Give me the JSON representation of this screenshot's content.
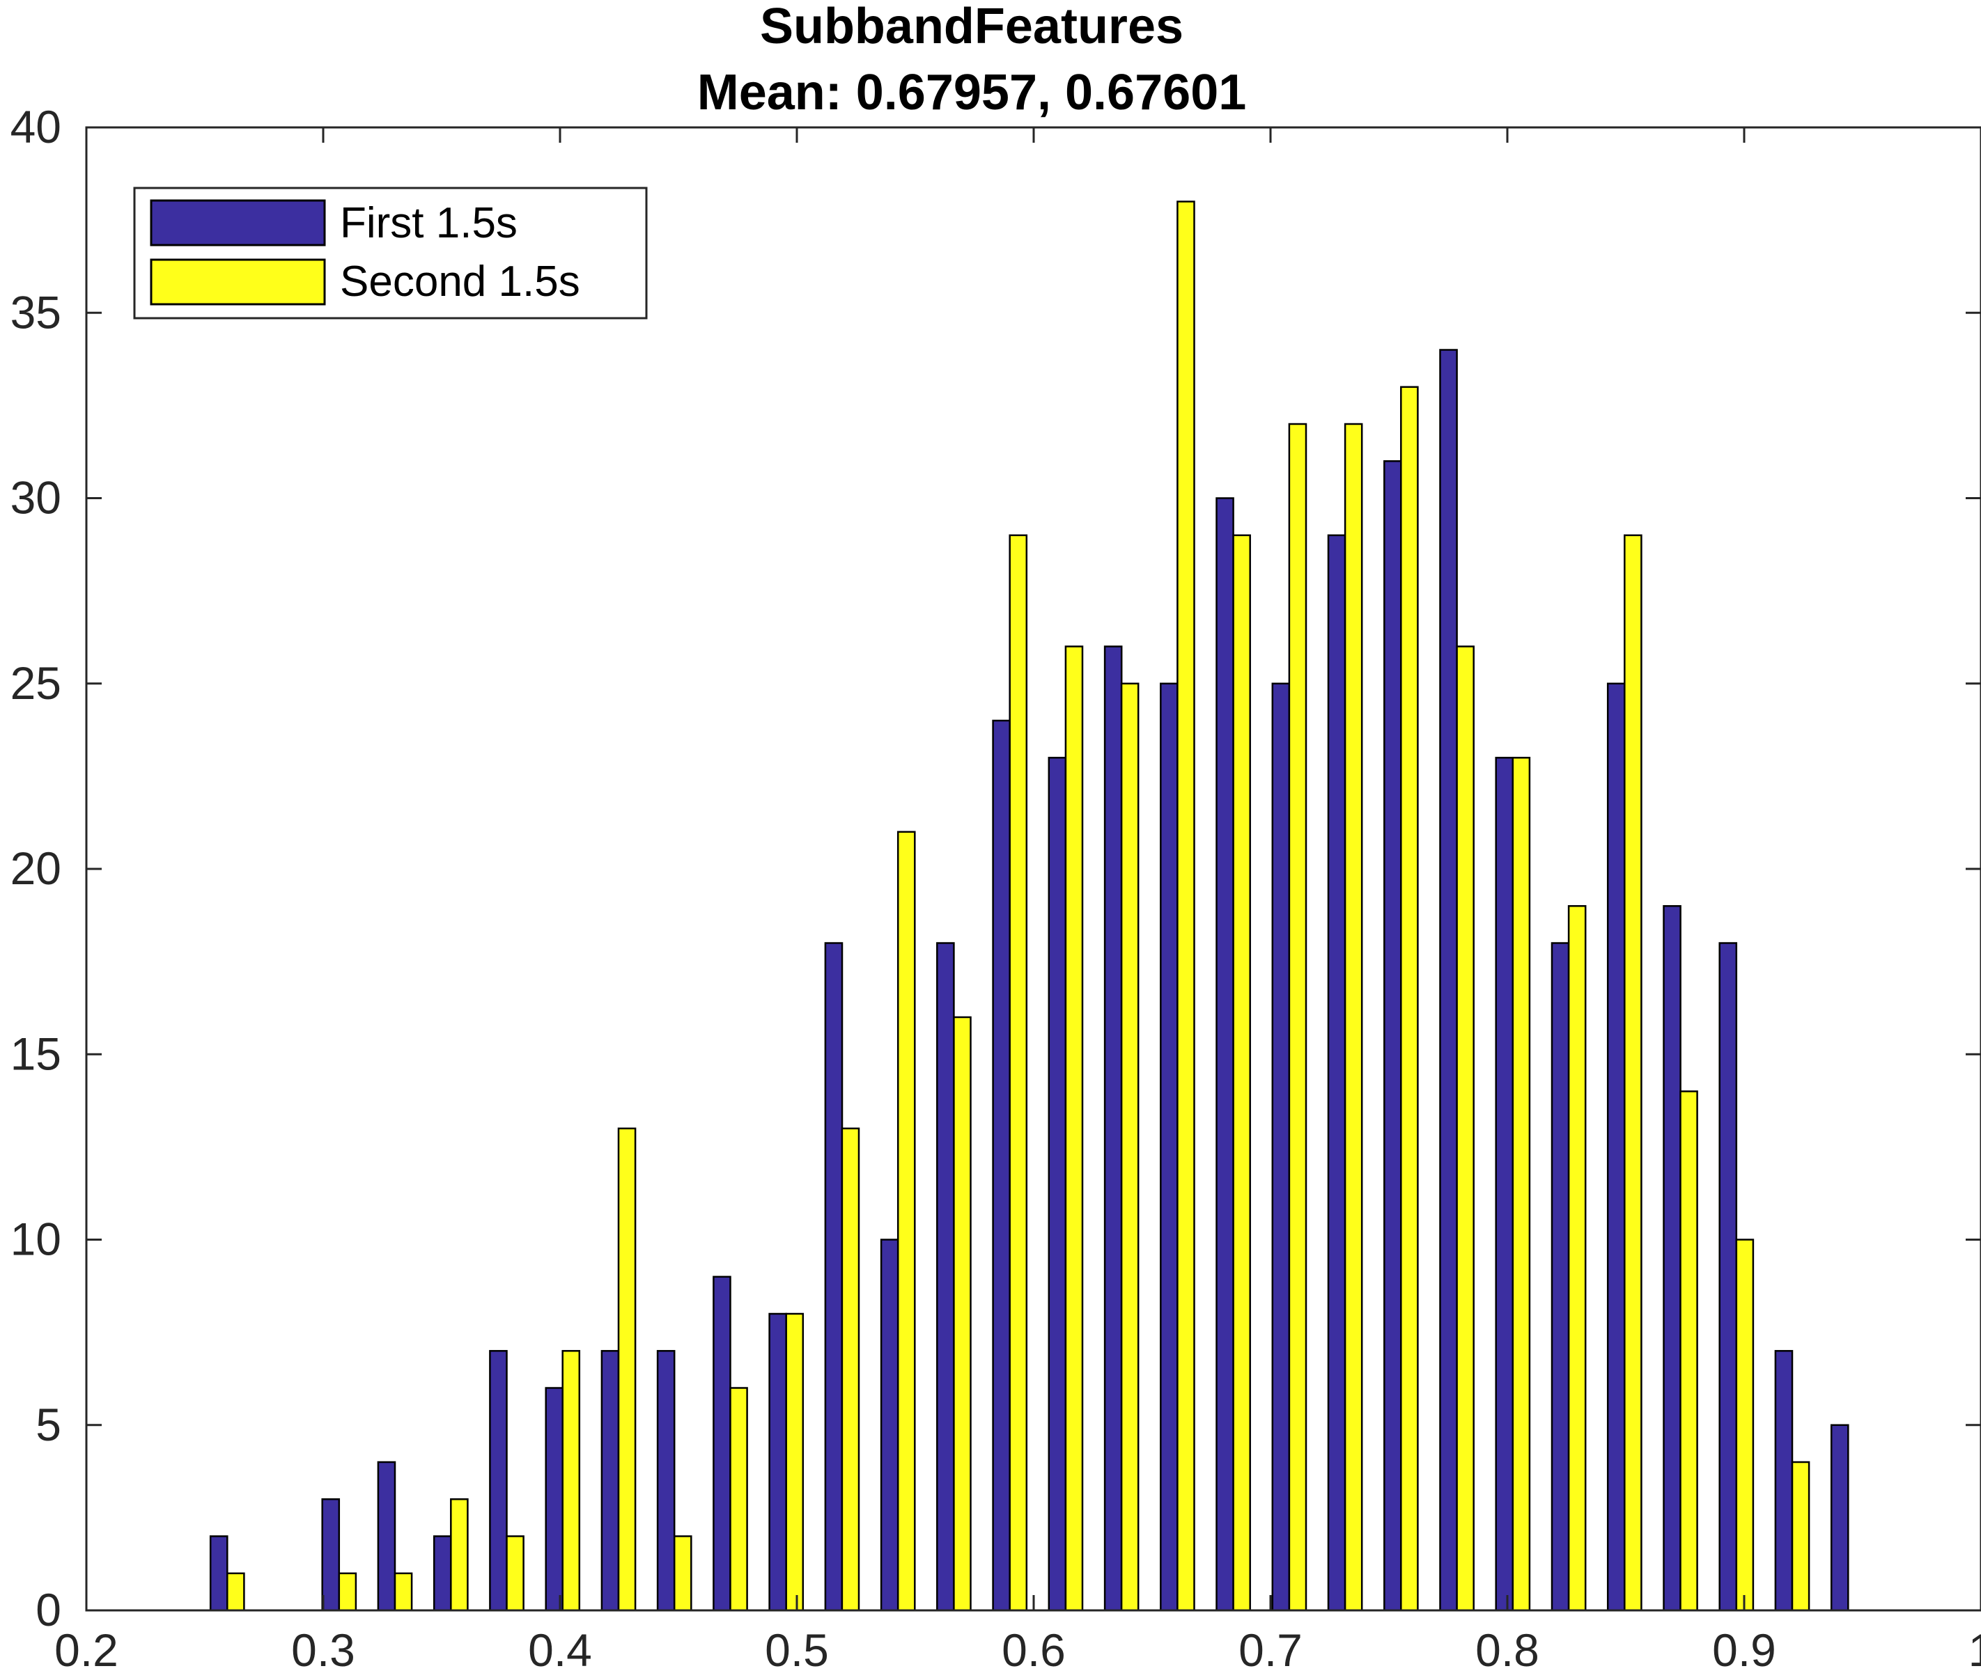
{
  "chart_data": {
    "type": "bar",
    "title_lines": [
      "SubbandFeatures",
      "Mean: 0.67957, 0.67601"
    ],
    "xlabel": "",
    "ylabel": "",
    "xlim": [
      0.2,
      1
    ],
    "ylim": [
      0,
      40
    ],
    "xticks": [
      0.2,
      0.3,
      0.4,
      0.5,
      0.6,
      0.7,
      0.8,
      0.9,
      1
    ],
    "xtick_labels": [
      "0.2",
      "0.3",
      "0.4",
      "0.5",
      "0.6",
      "0.7",
      "0.8",
      "0.9",
      "1"
    ],
    "yticks": [
      0,
      5,
      10,
      15,
      20,
      25,
      30,
      35,
      40
    ],
    "ytick_labels": [
      "0",
      "5",
      "10",
      "15",
      "20",
      "25",
      "30",
      "35",
      "40"
    ],
    "grid": false,
    "legend_position": "top-left",
    "bin_centers": [
      0.2595,
      0.2831,
      0.3067,
      0.3303,
      0.3539,
      0.3775,
      0.4011,
      0.4247,
      0.4483,
      0.4719,
      0.4955,
      0.5191,
      0.5427,
      0.5663,
      0.5899,
      0.6135,
      0.6371,
      0.6607,
      0.6843,
      0.7079,
      0.7315,
      0.7551,
      0.7787,
      0.8023,
      0.8259,
      0.8495,
      0.8731,
      0.8967,
      0.9203,
      0.9439
    ],
    "series": [
      {
        "name": "First 1.5s",
        "color": "#3c2fa0",
        "values": [
          2,
          0,
          3,
          4,
          2,
          7,
          6,
          7,
          7,
          9,
          8,
          18,
          10,
          18,
          24,
          23,
          26,
          25,
          30,
          25,
          29,
          31,
          34,
          23,
          18,
          25,
          19,
          18,
          7,
          5
        ]
      },
      {
        "name": "Second 1.5s",
        "color": "#ffff1a",
        "values": [
          1,
          0,
          1,
          1,
          3,
          2,
          7,
          13,
          2,
          6,
          8,
          13,
          21,
          16,
          29,
          26,
          25,
          38,
          29,
          32,
          32,
          33,
          26,
          23,
          19,
          29,
          14,
          10,
          4,
          0
        ]
      }
    ]
  }
}
